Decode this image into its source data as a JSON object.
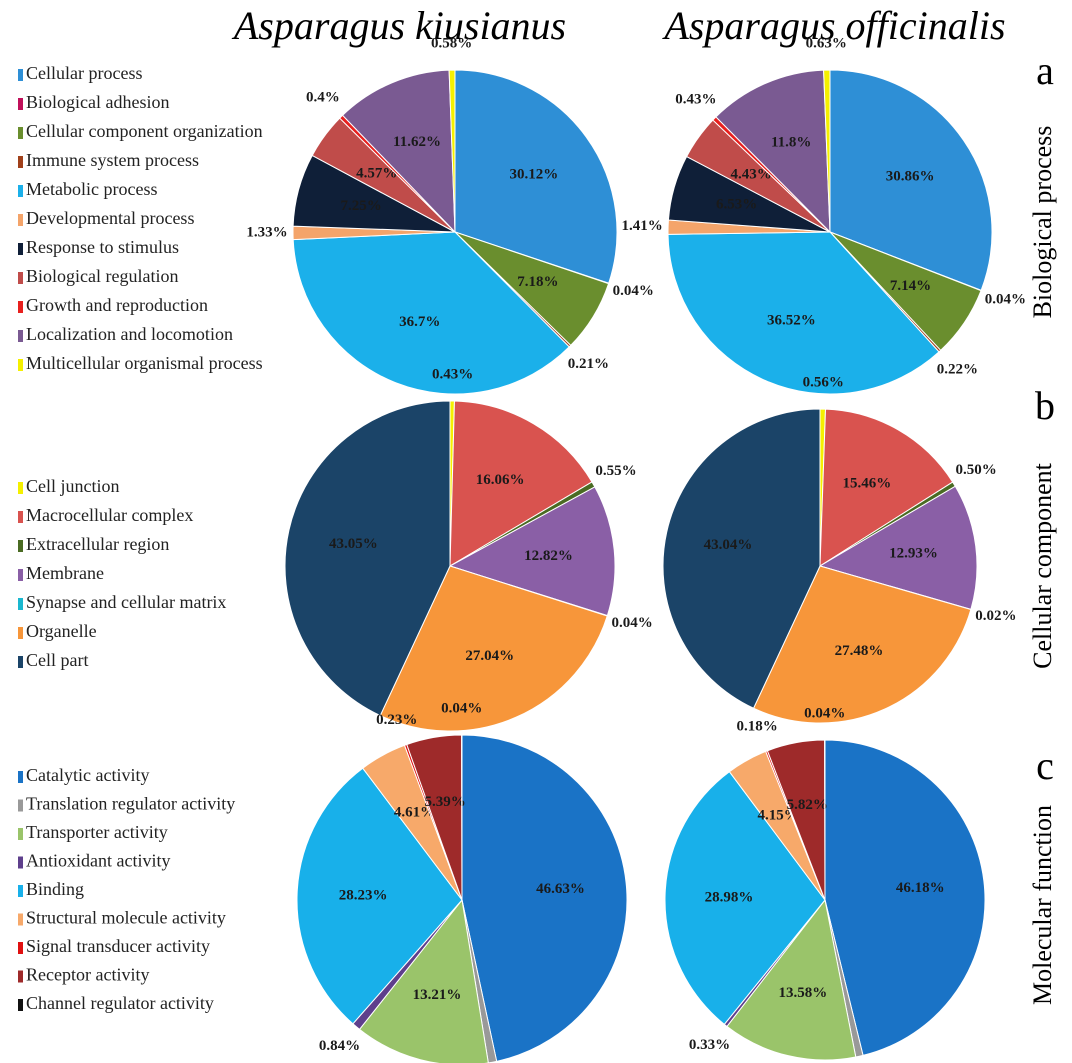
{
  "columns": [
    "Asparagus kiusianus",
    "Asparagus officinalis"
  ],
  "chart_data": [
    {
      "type": "pie",
      "letter": "a",
      "title": "Biological process",
      "categories": [
        "Cellular process",
        "Biological adhesion",
        "Cellular component organization",
        "Immune system process",
        "Metabolic process",
        "Developmental process",
        "Response to stimulus",
        "Biological regulation",
        "Growth and reproduction",
        "Localization and locomotion",
        "Multicellular organismal process"
      ],
      "colors": [
        "#2E8FD6",
        "#C0105A",
        "#6A8E2E",
        "#A0401A",
        "#1BB0EA",
        "#F4A46A",
        "#0F1F38",
        "#C04C4A",
        "#E8201E",
        "#7A5A92",
        "#F5F000"
      ],
      "series": [
        {
          "values": [
            30.12,
            0.04,
            7.18,
            0.21,
            36.7,
            1.33,
            7.25,
            4.57,
            0.4,
            11.62,
            0.58
          ],
          "value_labels": [
            "30.12%",
            "0.04%",
            "7.18%",
            "0.21%",
            "36.7%",
            "1.33%",
            "7.25%",
            "4.57%",
            "0.4%",
            "11.62%",
            "0.58%"
          ]
        },
        {
          "values": [
            30.86,
            0.04,
            7.14,
            0.22,
            36.52,
            1.41,
            6.53,
            4.43,
            0.43,
            11.8,
            0.63
          ],
          "value_labels": [
            "30.86%",
            "0.04%",
            "7.14%",
            "0.22%",
            "36.52%",
            "1.41%",
            "6.53%",
            "4.43%",
            "0.43%",
            "11.8%",
            "0.63%"
          ]
        }
      ]
    },
    {
      "type": "pie",
      "letter": "b",
      "title": "Cellular component",
      "categories": [
        "Cell junction",
        "Macrocellular complex",
        "Extracellular region",
        "Membrane",
        "Synapse and cellular matrix",
        "Organelle",
        "Cell part"
      ],
      "colors": [
        "#F5F000",
        "#D9534F",
        "#4A6B23",
        "#8A5FA6",
        "#1AB8D0",
        "#F7963A",
        "#1B4468"
      ],
      "series": [
        {
          "values": [
            0.43,
            16.06,
            0.55,
            12.82,
            0.04,
            27.04,
            43.05
          ],
          "value_labels": [
            "0.43%",
            "16.06%",
            "0.55%",
            "12.82%",
            "0.04%",
            "27.04%",
            "43.05%"
          ]
        },
        {
          "values": [
            0.56,
            15.46,
            0.5,
            12.93,
            0.02,
            27.48,
            43.04
          ],
          "value_labels": [
            "0.56%",
            "15.46%",
            "0.50%",
            "12.93%",
            "0.02%",
            "27.48%",
            "43.04%"
          ]
        }
      ]
    },
    {
      "type": "pie",
      "letter": "c",
      "title": "Molecular function",
      "categories": [
        "Catalytic activity",
        "Translation regulator activity",
        "Transporter activity",
        "Antioxidant activity",
        "Binding",
        "Structural molecule activity",
        "Signal transducer activity",
        "Receptor activity",
        "Channel regulator activity"
      ],
      "colors": [
        "#1A73C6",
        "#999999",
        "#9AC46A",
        "#5E3F8C",
        "#18B0EA",
        "#F7A96A",
        "#E01010",
        "#9E2A2A",
        "#111111"
      ],
      "series": [
        {
          "values": [
            46.63,
            0.82,
            13.21,
            0.84,
            28.23,
            4.61,
            0.23,
            5.39,
            0.04
          ],
          "value_labels": [
            "46.63%",
            "0.82%",
            "13.21%",
            "0.84%",
            "28.23%",
            "4.61%",
            "0.23%",
            "5.39%",
            "0.04%"
          ]
        },
        {
          "values": [
            46.18,
            0.74,
            13.58,
            0.33,
            28.98,
            4.15,
            0.18,
            5.82,
            0.04
          ],
          "value_labels": [
            "46.18%",
            "0.74%",
            "13.58%",
            "0.33%",
            "28.98%",
            "4.15%",
            "0.18%",
            "5.82%",
            "0.04%"
          ]
        }
      ]
    }
  ]
}
